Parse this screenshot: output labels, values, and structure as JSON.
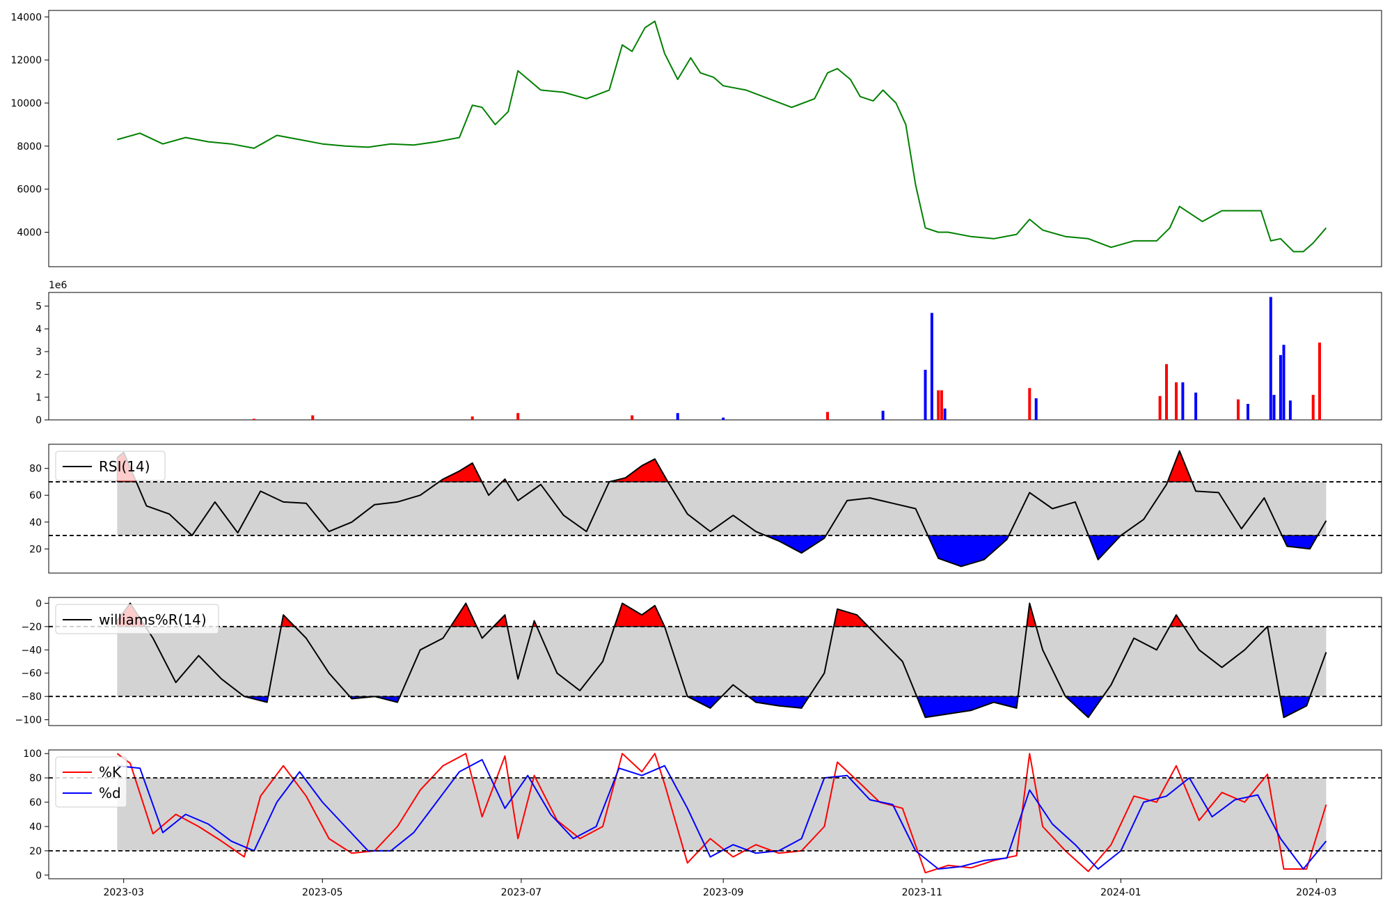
{
  "colors": {
    "price_line": "#008000",
    "up": "#ff0000",
    "down": "#0000ff",
    "band_fill": "#d3d3d3",
    "indicator_line": "#000000",
    "k_line": "#ff0000",
    "d_line": "#0000ff"
  },
  "chart_data": [
    {
      "type": "line",
      "panel": "price",
      "x_range": [
        "2023-02-06",
        "2024-03-21"
      ],
      "ylim": [
        2400,
        14300
      ],
      "yticks": [
        4000,
        6000,
        8000,
        10000,
        12000,
        14000
      ],
      "ytick_labels": [
        "4000",
        "6000",
        "8000",
        "10000",
        "12000",
        "14000"
      ],
      "series": [
        {
          "x": [
            "2023-02-27",
            "2023-03-06",
            "2023-03-13",
            "2023-03-20",
            "2023-03-27",
            "2023-04-03",
            "2023-04-10",
            "2023-04-17",
            "2023-04-24",
            "2023-05-01",
            "2023-05-08",
            "2023-05-15",
            "2023-05-22",
            "2023-05-29",
            "2023-06-05",
            "2023-06-12",
            "2023-06-16",
            "2023-06-19",
            "2023-06-23",
            "2023-06-27",
            "2023-06-30",
            "2023-07-07",
            "2023-07-14",
            "2023-07-21",
            "2023-07-28",
            "2023-08-01",
            "2023-08-04",
            "2023-08-08",
            "2023-08-11",
            "2023-08-14",
            "2023-08-18",
            "2023-08-22",
            "2023-08-25",
            "2023-08-29",
            "2023-09-01",
            "2023-09-08",
            "2023-09-15",
            "2023-09-22",
            "2023-09-29",
            "2023-10-03",
            "2023-10-06",
            "2023-10-10",
            "2023-10-13",
            "2023-10-17",
            "2023-10-20",
            "2023-10-24",
            "2023-10-27",
            "2023-10-30",
            "2023-11-02",
            "2023-11-06",
            "2023-11-09",
            "2023-11-16",
            "2023-11-23",
            "2023-11-30",
            "2023-12-04",
            "2023-12-08",
            "2023-12-15",
            "2023-12-22",
            "2023-12-29",
            "2024-01-05",
            "2024-01-12",
            "2024-01-16",
            "2024-01-19",
            "2024-01-23",
            "2024-01-26",
            "2024-02-01",
            "2024-02-06",
            "2024-02-13",
            "2024-02-16",
            "2024-02-19",
            "2024-02-23",
            "2024-02-26",
            "2024-02-29",
            "2024-03-04"
          ],
          "values": [
            8300,
            8600,
            8100,
            8400,
            8200,
            8100,
            7900,
            8500,
            8300,
            8100,
            8000,
            7950,
            8100,
            8050,
            8200,
            8400,
            9900,
            9800,
            9000,
            9600,
            11500,
            10600,
            10500,
            10200,
            10600,
            12700,
            12400,
            13500,
            13800,
            12300,
            11100,
            12100,
            11400,
            11200,
            10800,
            10600,
            10200,
            9800,
            10200,
            11400,
            11600,
            11100,
            10300,
            10100,
            10600,
            10000,
            9000,
            6200,
            4200,
            4000,
            4000,
            3800,
            3700,
            3900,
            4600,
            4100,
            3800,
            3700,
            3300,
            3600,
            3600,
            4200,
            5200,
            4800,
            4500,
            5000,
            5000,
            5000,
            3600,
            3700,
            3100,
            3100,
            3500,
            4200
          ]
        }
      ]
    },
    {
      "type": "bar",
      "panel": "volume",
      "offset_label": "1e6",
      "ylim": [
        0,
        5.6
      ],
      "yticks": [
        0,
        1,
        2,
        3,
        4,
        5
      ],
      "ytick_labels": [
        "0",
        "1",
        "2",
        "3",
        "4",
        "5"
      ],
      "x": [
        "2023-04-10",
        "2023-04-28",
        "2023-06-16",
        "2023-06-30",
        "2023-08-04",
        "2023-08-18",
        "2023-09-01",
        "2023-10-03",
        "2023-10-20",
        "2023-11-02",
        "2023-11-04",
        "2023-11-06",
        "2023-11-07",
        "2023-11-08",
        "2023-12-04",
        "2023-12-06",
        "2024-01-13",
        "2024-01-15",
        "2024-01-18",
        "2024-01-20",
        "2024-01-24",
        "2024-02-06",
        "2024-02-09",
        "2024-02-16",
        "2024-02-17",
        "2024-02-19",
        "2024-02-20",
        "2024-02-22",
        "2024-02-29",
        "2024-03-02"
      ],
      "values": [
        0.05,
        0.2,
        0.15,
        0.3,
        0.2,
        0.3,
        0.1,
        0.35,
        0.4,
        2.2,
        4.7,
        1.3,
        1.3,
        0.5,
        1.4,
        0.95,
        1.05,
        2.45,
        1.65,
        1.65,
        1.2,
        0.9,
        0.7,
        5.4,
        1.1,
        2.85,
        3.3,
        0.85,
        1.1,
        3.4
      ],
      "direction": [
        "up",
        "up",
        "up",
        "up",
        "up",
        "down",
        "down",
        "up",
        "down",
        "down",
        "down",
        "up",
        "up",
        "down",
        "up",
        "down",
        "up",
        "up",
        "up",
        "down",
        "down",
        "up",
        "down",
        "down",
        "down",
        "down",
        "down",
        "down",
        "up",
        "up"
      ]
    },
    {
      "type": "line",
      "panel": "rsi",
      "ylim": [
        2,
        98
      ],
      "yticks": [
        20,
        40,
        60,
        80
      ],
      "ytick_labels": [
        "20",
        "40",
        "60",
        "80"
      ],
      "hlines": [
        70,
        30
      ],
      "series": [
        {
          "name": "RSI(14)",
          "x": [
            "2023-02-27",
            "2023-03-01",
            "2023-03-08",
            "2023-03-15",
            "2023-03-22",
            "2023-03-29",
            "2023-04-05",
            "2023-04-12",
            "2023-04-19",
            "2023-04-26",
            "2023-05-03",
            "2023-05-10",
            "2023-05-17",
            "2023-05-24",
            "2023-05-31",
            "2023-06-07",
            "2023-06-12",
            "2023-06-16",
            "2023-06-21",
            "2023-06-26",
            "2023-06-30",
            "2023-07-07",
            "2023-07-14",
            "2023-07-21",
            "2023-07-28",
            "2023-08-02",
            "2023-08-07",
            "2023-08-11",
            "2023-08-15",
            "2023-08-21",
            "2023-08-28",
            "2023-09-04",
            "2023-09-11",
            "2023-09-18",
            "2023-09-25",
            "2023-10-02",
            "2023-10-09",
            "2023-10-16",
            "2023-10-23",
            "2023-10-30",
            "2023-11-06",
            "2023-11-13",
            "2023-11-20",
            "2023-11-27",
            "2023-12-04",
            "2023-12-11",
            "2023-12-18",
            "2023-12-25",
            "2024-01-01",
            "2024-01-08",
            "2024-01-15",
            "2024-01-19",
            "2024-01-24",
            "2024-01-31",
            "2024-02-07",
            "2024-02-14",
            "2024-02-21",
            "2024-02-28",
            "2024-03-04"
          ],
          "values": [
            88,
            92,
            52,
            46,
            30,
            55,
            32,
            63,
            55,
            54,
            33,
            40,
            53,
            55,
            60,
            72,
            78,
            84,
            60,
            72,
            56,
            68,
            45,
            33,
            70,
            73,
            82,
            87,
            70,
            46,
            33,
            45,
            33,
            26,
            17,
            28,
            56,
            58,
            54,
            50,
            13,
            7,
            12,
            27,
            62,
            50,
            55,
            12,
            30,
            42,
            68,
            93,
            63,
            62,
            35,
            58,
            22,
            20,
            41
          ]
        }
      ]
    },
    {
      "type": "line",
      "panel": "williams",
      "ylim": [
        -105,
        5
      ],
      "yticks": [
        -100,
        -80,
        -60,
        -40,
        -20,
        0
      ],
      "ytick_labels": [
        "−100",
        "−80",
        "−60",
        "−40",
        "−20",
        "0"
      ],
      "hlines": [
        -20,
        -80
      ],
      "series": [
        {
          "name": "williams%R(14)",
          "x": [
            "2023-02-27",
            "2023-03-03",
            "2023-03-10",
            "2023-03-17",
            "2023-03-24",
            "2023-03-31",
            "2023-04-07",
            "2023-04-14",
            "2023-04-19",
            "2023-04-26",
            "2023-05-03",
            "2023-05-10",
            "2023-05-17",
            "2023-05-24",
            "2023-05-31",
            "2023-06-07",
            "2023-06-14",
            "2023-06-19",
            "2023-06-26",
            "2023-06-30",
            "2023-07-05",
            "2023-07-12",
            "2023-07-19",
            "2023-07-26",
            "2023-08-01",
            "2023-08-07",
            "2023-08-11",
            "2023-08-14",
            "2023-08-21",
            "2023-08-28",
            "2023-09-04",
            "2023-09-11",
            "2023-09-18",
            "2023-09-25",
            "2023-10-02",
            "2023-10-06",
            "2023-10-12",
            "2023-10-19",
            "2023-10-26",
            "2023-11-02",
            "2023-11-09",
            "2023-11-16",
            "2023-11-23",
            "2023-11-30",
            "2023-12-04",
            "2023-12-08",
            "2023-12-15",
            "2023-12-22",
            "2023-12-29",
            "2024-01-05",
            "2024-01-12",
            "2024-01-18",
            "2024-01-25",
            "2024-02-01",
            "2024-02-08",
            "2024-02-15",
            "2024-02-20",
            "2024-02-27",
            "2024-03-04"
          ],
          "values": [
            -15,
            0,
            -30,
            -68,
            -45,
            -65,
            -80,
            -85,
            -10,
            -30,
            -60,
            -82,
            -80,
            -85,
            -40,
            -30,
            0,
            -30,
            -10,
            -65,
            -15,
            -60,
            -75,
            -50,
            0,
            -10,
            -2,
            -20,
            -80,
            -90,
            -70,
            -85,
            -88,
            -90,
            -60,
            -5,
            -10,
            -30,
            -50,
            -98,
            -95,
            -92,
            -85,
            -90,
            0,
            -40,
            -80,
            -98,
            -70,
            -30,
            -40,
            -10,
            -40,
            -55,
            -40,
            -20,
            -98,
            -88,
            -42
          ]
        }
      ]
    },
    {
      "type": "line",
      "panel": "stochastic",
      "ylim": [
        -3,
        103
      ],
      "yticks": [
        0,
        20,
        40,
        60,
        80,
        100
      ],
      "ytick_labels": [
        "0",
        "20",
        "40",
        "60",
        "80",
        "100"
      ],
      "hlines": [
        80,
        20
      ],
      "series": [
        {
          "name": "%K",
          "x": [
            "2023-02-27",
            "2023-03-03",
            "2023-03-10",
            "2023-03-17",
            "2023-03-24",
            "2023-03-31",
            "2023-04-07",
            "2023-04-12",
            "2023-04-19",
            "2023-04-26",
            "2023-05-03",
            "2023-05-10",
            "2023-05-17",
            "2023-05-24",
            "2023-05-31",
            "2023-06-07",
            "2023-06-14",
            "2023-06-19",
            "2023-06-26",
            "2023-06-30",
            "2023-07-05",
            "2023-07-12",
            "2023-07-19",
            "2023-07-26",
            "2023-08-01",
            "2023-08-07",
            "2023-08-11",
            "2023-08-14",
            "2023-08-21",
            "2023-08-28",
            "2023-09-04",
            "2023-09-11",
            "2023-09-18",
            "2023-09-25",
            "2023-10-02",
            "2023-10-06",
            "2023-10-12",
            "2023-10-19",
            "2023-10-26",
            "2023-11-02",
            "2023-11-09",
            "2023-11-16",
            "2023-11-23",
            "2023-11-30",
            "2023-12-04",
            "2023-12-08",
            "2023-12-15",
            "2023-12-22",
            "2023-12-29",
            "2024-01-05",
            "2024-01-12",
            "2024-01-18",
            "2024-01-25",
            "2024-02-01",
            "2024-02-08",
            "2024-02-15",
            "2024-02-20",
            "2024-02-27",
            "2024-03-04"
          ],
          "values": [
            100,
            92,
            34,
            50,
            40,
            28,
            15,
            65,
            90,
            65,
            30,
            18,
            20,
            40,
            70,
            90,
            100,
            48,
            98,
            30,
            82,
            45,
            30,
            40,
            100,
            85,
            100,
            75,
            10,
            30,
            15,
            25,
            18,
            20,
            40,
            93,
            78,
            60,
            55,
            2,
            8,
            6,
            12,
            16,
            100,
            40,
            20,
            3,
            25,
            65,
            60,
            90,
            45,
            68,
            60,
            83,
            5,
            5,
            58
          ]
        },
        {
          "name": "%d",
          "x": [
            "2023-02-27",
            "2023-03-06",
            "2023-03-13",
            "2023-03-20",
            "2023-03-27",
            "2023-04-03",
            "2023-04-10",
            "2023-04-17",
            "2023-04-24",
            "2023-05-01",
            "2023-05-08",
            "2023-05-15",
            "2023-05-22",
            "2023-05-29",
            "2023-06-05",
            "2023-06-12",
            "2023-06-19",
            "2023-06-26",
            "2023-07-03",
            "2023-07-10",
            "2023-07-17",
            "2023-07-24",
            "2023-07-31",
            "2023-08-07",
            "2023-08-14",
            "2023-08-21",
            "2023-08-28",
            "2023-09-04",
            "2023-09-11",
            "2023-09-18",
            "2023-09-25",
            "2023-10-02",
            "2023-10-09",
            "2023-10-16",
            "2023-10-23",
            "2023-10-30",
            "2023-11-06",
            "2023-11-13",
            "2023-11-20",
            "2023-11-27",
            "2023-12-04",
            "2023-12-11",
            "2023-12-18",
            "2023-12-25",
            "2024-01-01",
            "2024-01-08",
            "2024-01-15",
            "2024-01-22",
            "2024-01-29",
            "2024-02-05",
            "2024-02-12",
            "2024-02-19",
            "2024-02-26",
            "2024-03-04"
          ],
          "values": [
            90,
            88,
            35,
            50,
            42,
            28,
            20,
            60,
            85,
            60,
            40,
            20,
            20,
            35,
            60,
            85,
            95,
            55,
            82,
            50,
            30,
            40,
            88,
            82,
            90,
            55,
            15,
            25,
            18,
            20,
            30,
            80,
            82,
            62,
            58,
            20,
            5,
            7,
            12,
            14,
            70,
            42,
            25,
            5,
            20,
            60,
            65,
            80,
            48,
            62,
            66,
            30,
            5,
            28
          ]
        }
      ]
    }
  ],
  "xaxis": {
    "range": [
      "2023-02-06",
      "2024-03-21"
    ],
    "ticks": [
      "2023-03-01",
      "2023-05-01",
      "2023-07-01",
      "2023-09-01",
      "2023-11-01",
      "2024-01-01",
      "2024-03-01"
    ],
    "tick_labels": [
      "2023-03",
      "2023-05",
      "2023-07",
      "2023-09",
      "2023-11",
      "2024-01",
      "2024-03"
    ]
  }
}
